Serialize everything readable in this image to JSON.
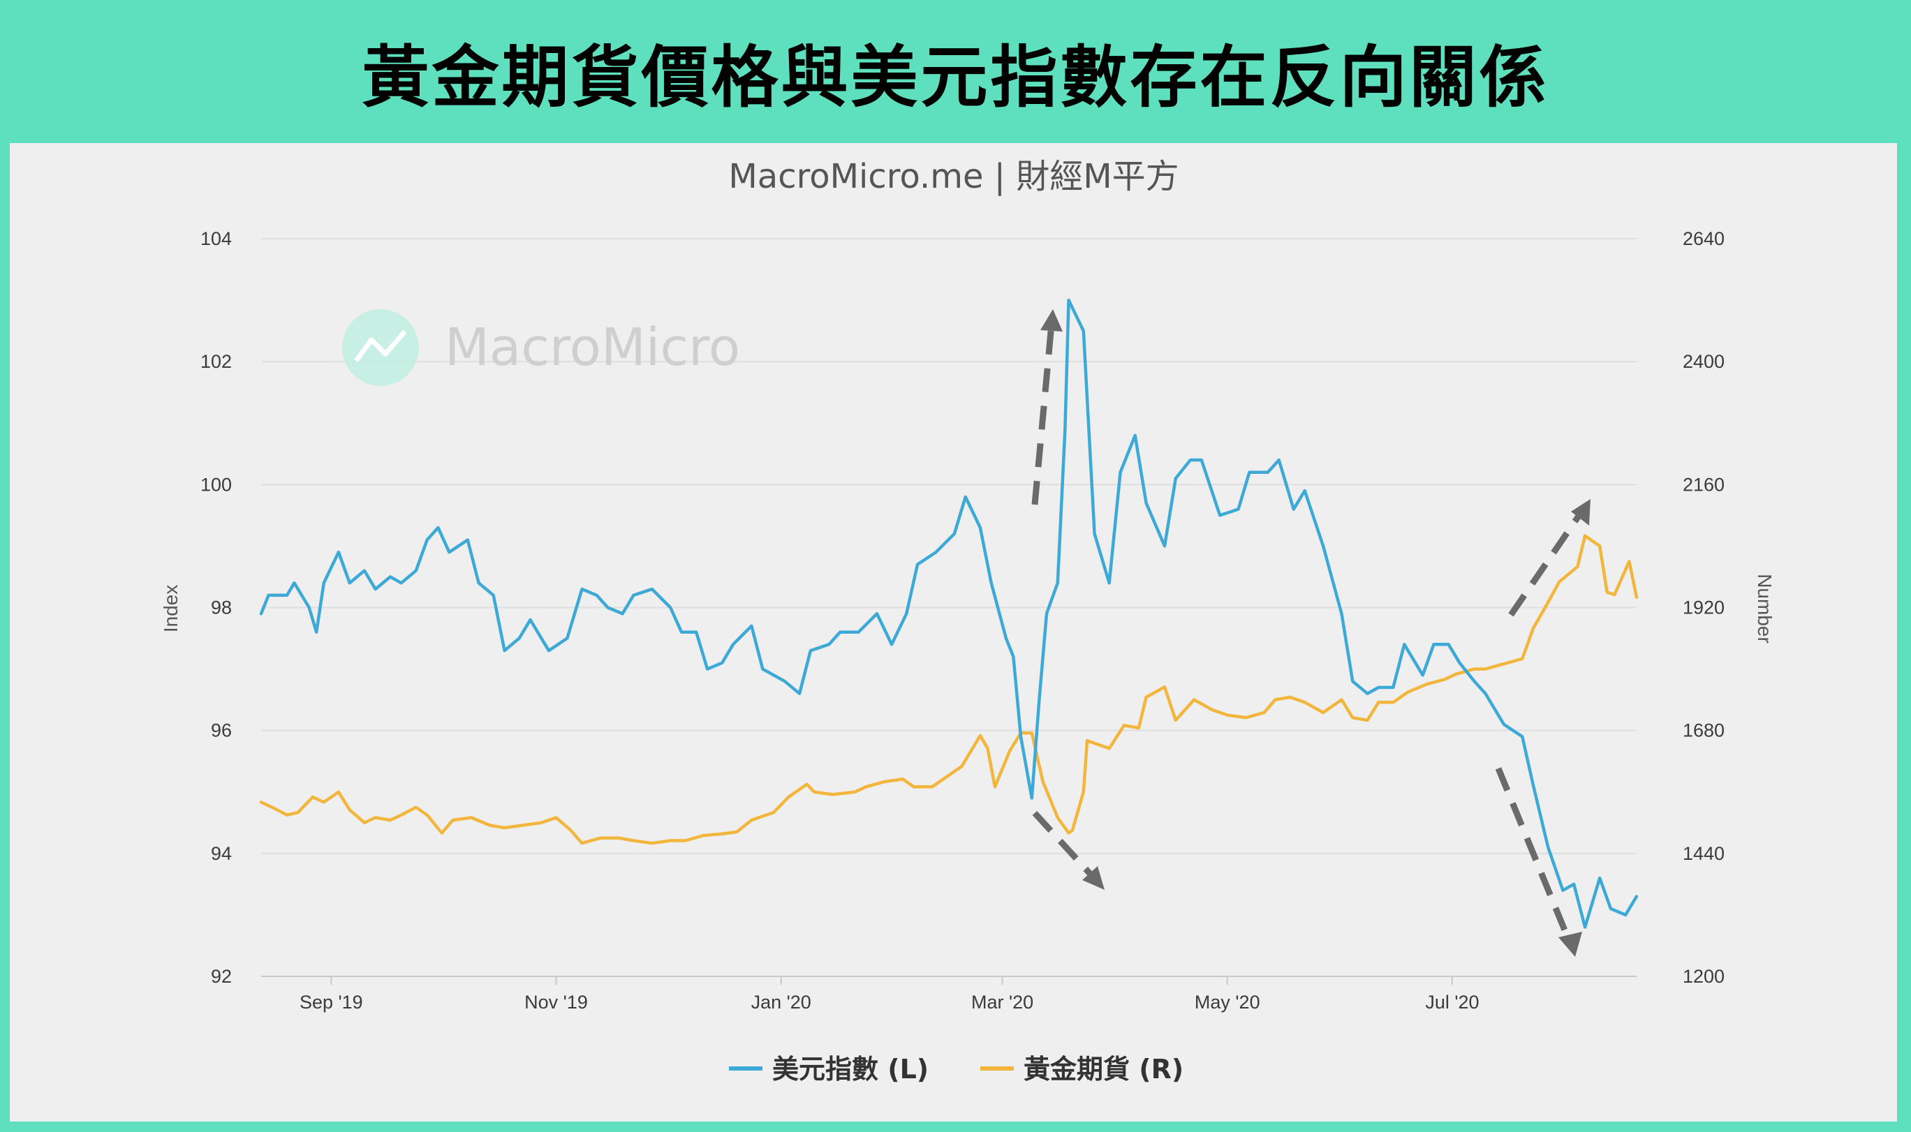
{
  "banner": {
    "title": "黃金期貨價格與美元指數存在反向關係"
  },
  "watermark": {
    "text": "MacroMicro"
  },
  "colors": {
    "banner_bg": "#5ee0bf",
    "usd": "#3da9d6",
    "gold": "#f2b63c",
    "arrow": "#6a6a6a"
  },
  "chart_data": {
    "type": "line",
    "title": "MacroMicro.me | 財經M平方",
    "y_left": {
      "label": "Index",
      "range": [
        92,
        104
      ],
      "ticks": [
        "104",
        "102",
        "100",
        "98",
        "96",
        "94",
        "92"
      ]
    },
    "y_right": {
      "label": "Number",
      "range": [
        1200,
        2640
      ],
      "ticks": [
        "2640",
        "2400",
        "2160",
        "1920",
        "1680",
        "1440",
        "1200"
      ]
    },
    "x_ticks": [
      {
        "label": "Sep '19",
        "date": "2019-09-01"
      },
      {
        "label": "Nov '19",
        "date": "2019-11-01"
      },
      {
        "label": "Jan '20",
        "date": "2020-01-01"
      },
      {
        "label": "Mar '20",
        "date": "2020-03-01"
      },
      {
        "label": "May '20",
        "date": "2020-05-01"
      },
      {
        "label": "Jul '20",
        "date": "2020-07-01"
      }
    ],
    "x_range": [
      "2019-08-13",
      "2020-08-20"
    ],
    "grid": true,
    "legend_position": "bottom-center",
    "series": [
      {
        "name": "美元指數 (L)",
        "axis": "left",
        "points": [
          [
            "2019-08-13",
            97.9
          ],
          [
            "2019-08-15",
            98.2
          ],
          [
            "2019-08-20",
            98.2
          ],
          [
            "2019-08-22",
            98.4
          ],
          [
            "2019-08-26",
            98.0
          ],
          [
            "2019-08-28",
            97.6
          ],
          [
            "2019-08-30",
            98.4
          ],
          [
            "2019-09-03",
            98.9
          ],
          [
            "2019-09-06",
            98.4
          ],
          [
            "2019-09-10",
            98.6
          ],
          [
            "2019-09-13",
            98.3
          ],
          [
            "2019-09-17",
            98.5
          ],
          [
            "2019-09-20",
            98.4
          ],
          [
            "2019-09-24",
            98.6
          ],
          [
            "2019-09-27",
            99.1
          ],
          [
            "2019-09-30",
            99.3
          ],
          [
            "2019-10-03",
            98.9
          ],
          [
            "2019-10-08",
            99.1
          ],
          [
            "2019-10-11",
            98.4
          ],
          [
            "2019-10-15",
            98.2
          ],
          [
            "2019-10-18",
            97.3
          ],
          [
            "2019-10-22",
            97.5
          ],
          [
            "2019-10-25",
            97.8
          ],
          [
            "2019-10-30",
            97.3
          ],
          [
            "2019-11-04",
            97.5
          ],
          [
            "2019-11-08",
            98.3
          ],
          [
            "2019-11-12",
            98.2
          ],
          [
            "2019-11-15",
            98.0
          ],
          [
            "2019-11-19",
            97.9
          ],
          [
            "2019-11-22",
            98.2
          ],
          [
            "2019-11-27",
            98.3
          ],
          [
            "2019-12-02",
            98.0
          ],
          [
            "2019-12-05",
            97.6
          ],
          [
            "2019-12-09",
            97.6
          ],
          [
            "2019-12-12",
            97.0
          ],
          [
            "2019-12-16",
            97.1
          ],
          [
            "2019-12-19",
            97.4
          ],
          [
            "2019-12-24",
            97.7
          ],
          [
            "2019-12-27",
            97.0
          ],
          [
            "2020-01-02",
            96.8
          ],
          [
            "2020-01-06",
            96.6
          ],
          [
            "2020-01-09",
            97.3
          ],
          [
            "2020-01-14",
            97.4
          ],
          [
            "2020-01-17",
            97.6
          ],
          [
            "2020-01-22",
            97.6
          ],
          [
            "2020-01-27",
            97.9
          ],
          [
            "2020-01-31",
            97.4
          ],
          [
            "2020-02-04",
            97.9
          ],
          [
            "2020-02-07",
            98.7
          ],
          [
            "2020-02-12",
            98.9
          ],
          [
            "2020-02-17",
            99.2
          ],
          [
            "2020-02-20",
            99.8
          ],
          [
            "2020-02-24",
            99.3
          ],
          [
            "2020-02-27",
            98.4
          ],
          [
            "2020-03-02",
            97.5
          ],
          [
            "2020-03-04",
            97.2
          ],
          [
            "2020-03-06",
            95.9
          ],
          [
            "2020-03-09",
            94.9
          ],
          [
            "2020-03-11",
            96.5
          ],
          [
            "2020-03-13",
            97.9
          ],
          [
            "2020-03-16",
            98.4
          ],
          [
            "2020-03-18",
            100.9
          ],
          [
            "2020-03-19",
            103.0
          ],
          [
            "2020-03-23",
            102.5
          ],
          [
            "2020-03-26",
            99.2
          ],
          [
            "2020-03-30",
            98.4
          ],
          [
            "2020-04-02",
            100.2
          ],
          [
            "2020-04-06",
            100.8
          ],
          [
            "2020-04-09",
            99.7
          ],
          [
            "2020-04-14",
            99.0
          ],
          [
            "2020-04-17",
            100.1
          ],
          [
            "2020-04-21",
            100.4
          ],
          [
            "2020-04-24",
            100.4
          ],
          [
            "2020-04-29",
            99.5
          ],
          [
            "2020-05-04",
            99.6
          ],
          [
            "2020-05-07",
            100.2
          ],
          [
            "2020-05-12",
            100.2
          ],
          [
            "2020-05-15",
            100.4
          ],
          [
            "2020-05-19",
            99.6
          ],
          [
            "2020-05-22",
            99.9
          ],
          [
            "2020-05-27",
            99.0
          ],
          [
            "2020-06-01",
            97.9
          ],
          [
            "2020-06-04",
            96.8
          ],
          [
            "2020-06-08",
            96.6
          ],
          [
            "2020-06-11",
            96.7
          ],
          [
            "2020-06-15",
            96.7
          ],
          [
            "2020-06-18",
            97.4
          ],
          [
            "2020-06-23",
            96.9
          ],
          [
            "2020-06-26",
            97.4
          ],
          [
            "2020-06-30",
            97.4
          ],
          [
            "2020-07-03",
            97.1
          ],
          [
            "2020-07-07",
            96.8
          ],
          [
            "2020-07-10",
            96.6
          ],
          [
            "2020-07-15",
            96.1
          ],
          [
            "2020-07-20",
            95.9
          ],
          [
            "2020-07-23",
            95.1
          ],
          [
            "2020-07-27",
            94.1
          ],
          [
            "2020-07-31",
            93.4
          ],
          [
            "2020-08-03",
            93.5
          ],
          [
            "2020-08-06",
            92.8
          ],
          [
            "2020-08-10",
            93.6
          ],
          [
            "2020-08-13",
            93.1
          ],
          [
            "2020-08-17",
            93.0
          ],
          [
            "2020-08-20",
            93.3
          ]
        ]
      },
      {
        "name": "黃金期貨 (R)",
        "axis": "right",
        "points": [
          [
            "2019-08-13",
            1540
          ],
          [
            "2019-08-16",
            1530
          ],
          [
            "2019-08-20",
            1515
          ],
          [
            "2019-08-23",
            1520
          ],
          [
            "2019-08-27",
            1550
          ],
          [
            "2019-08-30",
            1540
          ],
          [
            "2019-09-03",
            1560
          ],
          [
            "2019-09-06",
            1525
          ],
          [
            "2019-09-10",
            1500
          ],
          [
            "2019-09-13",
            1510
          ],
          [
            "2019-09-17",
            1505
          ],
          [
            "2019-09-20",
            1515
          ],
          [
            "2019-09-24",
            1530
          ],
          [
            "2019-09-27",
            1515
          ],
          [
            "2019-10-01",
            1480
          ],
          [
            "2019-10-04",
            1505
          ],
          [
            "2019-10-09",
            1510
          ],
          [
            "2019-10-14",
            1495
          ],
          [
            "2019-10-18",
            1490
          ],
          [
            "2019-10-23",
            1495
          ],
          [
            "2019-10-28",
            1500
          ],
          [
            "2019-11-01",
            1510
          ],
          [
            "2019-11-05",
            1485
          ],
          [
            "2019-11-08",
            1460
          ],
          [
            "2019-11-13",
            1470
          ],
          [
            "2019-11-18",
            1470
          ],
          [
            "2019-11-22",
            1465
          ],
          [
            "2019-11-27",
            1460
          ],
          [
            "2019-12-02",
            1465
          ],
          [
            "2019-12-06",
            1465
          ],
          [
            "2019-12-11",
            1475
          ],
          [
            "2019-12-16",
            1478
          ],
          [
            "2019-12-20",
            1482
          ],
          [
            "2019-12-24",
            1505
          ],
          [
            "2019-12-30",
            1520
          ],
          [
            "2020-01-03",
            1550
          ],
          [
            "2020-01-08",
            1575
          ],
          [
            "2020-01-10",
            1560
          ],
          [
            "2020-01-15",
            1555
          ],
          [
            "2020-01-21",
            1560
          ],
          [
            "2020-01-24",
            1570
          ],
          [
            "2020-01-29",
            1580
          ],
          [
            "2020-02-03",
            1585
          ],
          [
            "2020-02-06",
            1570
          ],
          [
            "2020-02-11",
            1570
          ],
          [
            "2020-02-14",
            1585
          ],
          [
            "2020-02-19",
            1610
          ],
          [
            "2020-02-24",
            1670
          ],
          [
            "2020-02-26",
            1645
          ],
          [
            "2020-02-28",
            1570
          ],
          [
            "2020-03-03",
            1640
          ],
          [
            "2020-03-06",
            1675
          ],
          [
            "2020-03-09",
            1675
          ],
          [
            "2020-03-12",
            1580
          ],
          [
            "2020-03-16",
            1510
          ],
          [
            "2020-03-19",
            1480
          ],
          [
            "2020-03-20",
            1485
          ],
          [
            "2020-03-23",
            1560
          ],
          [
            "2020-03-24",
            1660
          ],
          [
            "2020-03-30",
            1645
          ],
          [
            "2020-04-03",
            1690
          ],
          [
            "2020-04-07",
            1685
          ],
          [
            "2020-04-09",
            1745
          ],
          [
            "2020-04-14",
            1765
          ],
          [
            "2020-04-17",
            1700
          ],
          [
            "2020-04-22",
            1740
          ],
          [
            "2020-04-27",
            1720
          ],
          [
            "2020-05-01",
            1710
          ],
          [
            "2020-05-06",
            1705
          ],
          [
            "2020-05-11",
            1715
          ],
          [
            "2020-05-14",
            1740
          ],
          [
            "2020-05-18",
            1745
          ],
          [
            "2020-05-22",
            1735
          ],
          [
            "2020-05-27",
            1715
          ],
          [
            "2020-06-01",
            1740
          ],
          [
            "2020-06-04",
            1705
          ],
          [
            "2020-06-08",
            1700
          ],
          [
            "2020-06-11",
            1735
          ],
          [
            "2020-06-15",
            1735
          ],
          [
            "2020-06-19",
            1755
          ],
          [
            "2020-06-24",
            1770
          ],
          [
            "2020-06-29",
            1780
          ],
          [
            "2020-07-02",
            1790
          ],
          [
            "2020-07-07",
            1800
          ],
          [
            "2020-07-10",
            1800
          ],
          [
            "2020-07-15",
            1810
          ],
          [
            "2020-07-20",
            1820
          ],
          [
            "2020-07-23",
            1880
          ],
          [
            "2020-07-27",
            1930
          ],
          [
            "2020-07-30",
            1970
          ],
          [
            "2020-08-04",
            2000
          ],
          [
            "2020-08-06",
            2060
          ],
          [
            "2020-08-10",
            2040
          ],
          [
            "2020-08-12",
            1950
          ],
          [
            "2020-08-14",
            1945
          ],
          [
            "2020-08-18",
            2010
          ],
          [
            "2020-08-20",
            1940
          ]
        ]
      }
    ]
  }
}
